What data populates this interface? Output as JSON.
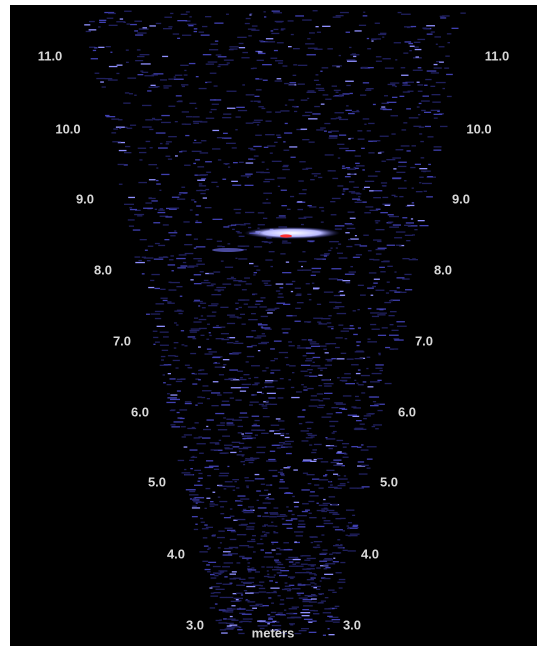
{
  "range_unit": "meters",
  "left_labels": [
    "11.0",
    "10.0",
    "9.0",
    "8.0",
    "7.0",
    "6.0",
    "5.0",
    "4.0",
    "3.0"
  ],
  "right_labels": [
    "11.0",
    "10.0",
    "9.0",
    "8.0",
    "7.0",
    "6.0",
    "5.0",
    "4.0",
    "3.0"
  ]
}
